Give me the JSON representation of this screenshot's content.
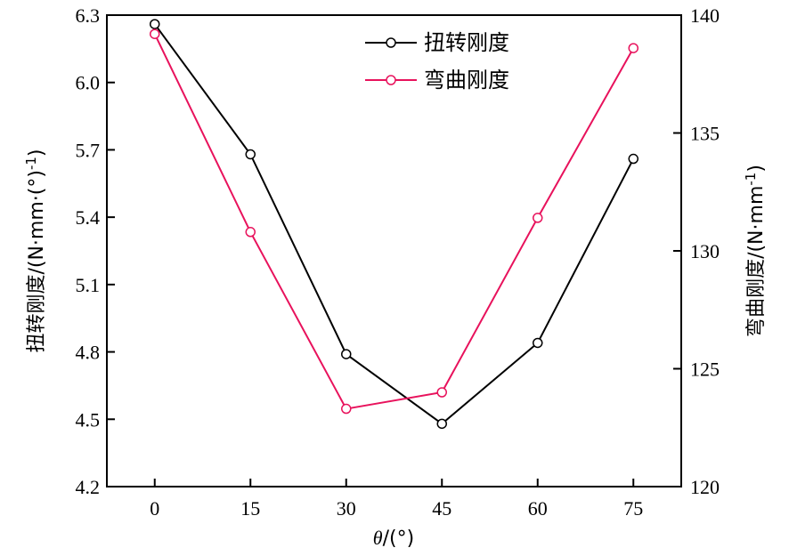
{
  "chart_data": {
    "type": "line",
    "x": [
      0,
      15,
      30,
      45,
      60,
      75
    ],
    "xlabel_var": "θ",
    "xlabel_unit": "/(°)",
    "x_ticks": [
      "0",
      "15",
      "30",
      "45",
      "60",
      "75"
    ],
    "xlim": [
      -7.5,
      82.5
    ],
    "ylabel_left": "扭转刚度/(N·mm·(°)",
    "ylabel_left_sup": "-1",
    "ylabel_left_tail": ")",
    "ylim_left": [
      4.2,
      6.3
    ],
    "y_ticks_left": [
      "4.2",
      "4.5",
      "4.8",
      "5.1",
      "5.4",
      "5.7",
      "6.0",
      "6.3"
    ],
    "ylabel_right": "弯曲刚度/(N·mm",
    "ylabel_right_sup": "-1",
    "ylabel_right_tail": ")",
    "ylim_right": [
      120,
      140
    ],
    "y_ticks_right": [
      "120",
      "125",
      "130",
      "135",
      "140"
    ],
    "legend_position": "top-center",
    "grid": false,
    "series": [
      {
        "name": "扭转刚度",
        "axis": "left",
        "color": "#000000",
        "values": [
          6.26,
          5.68,
          4.79,
          4.48,
          4.84,
          5.66
        ]
      },
      {
        "name": "弯曲刚度",
        "axis": "right",
        "color": "#e8125c",
        "values": [
          139.2,
          130.8,
          123.3,
          124.0,
          131.4,
          138.6
        ]
      }
    ]
  }
}
